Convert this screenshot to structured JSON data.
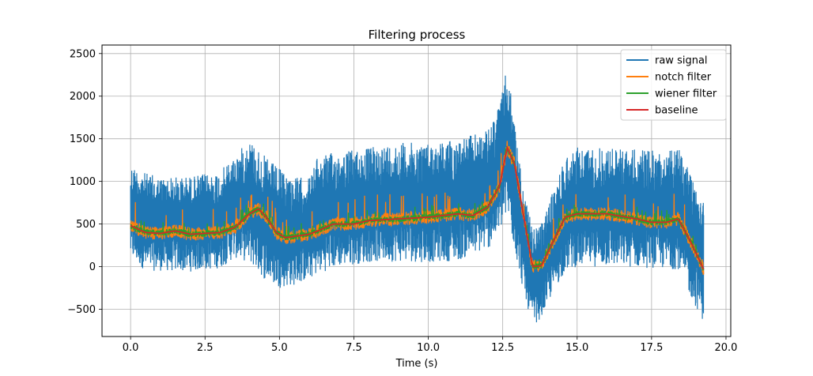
{
  "chart_data": {
    "type": "line",
    "title": "Filtering process",
    "xlabel": "Time (s)",
    "ylabel": "",
    "xlim": [
      -0.96,
      20.16
    ],
    "ylim": [
      -820,
      2600
    ],
    "xticks": [
      0.0,
      2.5,
      5.0,
      7.5,
      10.0,
      12.5,
      15.0,
      17.5,
      20.0
    ],
    "xtick_labels": [
      "0.0",
      "2.5",
      "5.0",
      "7.5",
      "10.0",
      "12.5",
      "15.0",
      "17.5",
      "20.0"
    ],
    "yticks": [
      -500,
      0,
      500,
      1000,
      1500,
      2000,
      2500
    ],
    "ytick_labels": [
      "−500",
      "0",
      "500",
      "1000",
      "1500",
      "2000",
      "2500"
    ],
    "grid": true,
    "legend_position": "top-right",
    "x_range": [
      0.0,
      19.25
    ],
    "series": [
      {
        "name": "raw signal",
        "color": "#1f77b4",
        "envelope": {
          "x": [
            0.0,
            0.5,
            1.0,
            2.0,
            3.0,
            3.5,
            4.0,
            4.5,
            5.0,
            5.5,
            6.0,
            6.3,
            7.0,
            8.0,
            9.0,
            10.0,
            11.0,
            12.0,
            12.4,
            12.65,
            12.9,
            13.2,
            13.5,
            13.8,
            14.2,
            14.6,
            15.0,
            16.0,
            17.0,
            18.0,
            18.4,
            18.8,
            19.25
          ],
          "upper": [
            1200,
            1100,
            1050,
            1060,
            1120,
            1300,
            1500,
            1300,
            1150,
            1050,
            1050,
            1300,
            1350,
            1400,
            1460,
            1450,
            1500,
            1600,
            1900,
            2350,
            1700,
            900,
            450,
            500,
            900,
            1300,
            1400,
            1400,
            1380,
            1350,
            1400,
            1150,
            850
          ],
          "lower": [
            100,
            -50,
            -50,
            -60,
            -20,
            100,
            50,
            -150,
            -250,
            -220,
            -150,
            -80,
            0,
            50,
            60,
            50,
            70,
            200,
            400,
            600,
            200,
            -300,
            -700,
            -600,
            -300,
            -50,
            0,
            0,
            -10,
            -30,
            -30,
            -350,
            -650
          ]
        }
      },
      {
        "name": "notch filter",
        "color": "#ff7f0e",
        "x": [
          0.0,
          0.5,
          1.0,
          1.5,
          2.0,
          2.5,
          3.0,
          3.5,
          4.0,
          4.3,
          4.6,
          4.9,
          5.2,
          5.6,
          6.0,
          6.3,
          6.8,
          7.5,
          8.0,
          9.0,
          10.0,
          11.0,
          11.5,
          12.0,
          12.4,
          12.65,
          12.9,
          13.2,
          13.5,
          13.8,
          14.2,
          14.6,
          15.0,
          16.0,
          17.0,
          17.5,
          18.0,
          18.4,
          18.8,
          19.25
        ],
        "values": [
          480,
          400,
          390,
          420,
          380,
          390,
          400,
          460,
          620,
          680,
          560,
          400,
          340,
          360,
          380,
          420,
          500,
          500,
          540,
          560,
          580,
          620,
          600,
          700,
          950,
          1400,
          1200,
          600,
          0,
          10,
          300,
          580,
          620,
          620,
          560,
          520,
          520,
          560,
          300,
          -30
        ],
        "band": 130
      },
      {
        "name": "wiener filter",
        "color": "#2ca02c",
        "x": [
          0.0,
          0.5,
          1.0,
          1.5,
          2.0,
          2.5,
          3.0,
          3.5,
          4.0,
          4.3,
          4.6,
          4.9,
          5.2,
          5.6,
          6.0,
          6.3,
          6.8,
          7.5,
          8.0,
          9.0,
          10.0,
          11.0,
          11.5,
          12.0,
          12.4,
          12.65,
          12.9,
          13.2,
          13.5,
          13.8,
          14.2,
          14.6,
          15.0,
          16.0,
          17.0,
          17.5,
          18.0,
          18.4,
          18.8,
          19.25
        ],
        "values": [
          480,
          400,
          390,
          420,
          380,
          390,
          400,
          460,
          620,
          680,
          560,
          400,
          340,
          360,
          380,
          420,
          500,
          500,
          540,
          560,
          580,
          620,
          600,
          700,
          950,
          1400,
          1200,
          600,
          0,
          10,
          300,
          580,
          620,
          620,
          560,
          520,
          520,
          560,
          300,
          -30
        ],
        "band": 60
      },
      {
        "name": "baseline",
        "color": "#d62728",
        "x": [
          0.0,
          0.5,
          1.0,
          1.5,
          2.0,
          2.5,
          3.0,
          3.5,
          4.0,
          4.3,
          4.6,
          4.9,
          5.2,
          5.6,
          6.0,
          6.3,
          6.8,
          7.5,
          8.0,
          9.0,
          10.0,
          11.0,
          11.5,
          12.0,
          12.4,
          12.65,
          12.9,
          13.2,
          13.5,
          13.8,
          14.2,
          14.6,
          15.0,
          16.0,
          17.0,
          17.5,
          18.0,
          18.4,
          18.8,
          19.25
        ],
        "values": [
          480,
          400,
          390,
          420,
          380,
          390,
          400,
          460,
          620,
          680,
          560,
          400,
          340,
          360,
          380,
          420,
          500,
          500,
          540,
          560,
          580,
          620,
          600,
          700,
          950,
          1400,
          1200,
          600,
          0,
          10,
          300,
          580,
          620,
          620,
          560,
          520,
          520,
          560,
          300,
          -30
        ]
      }
    ]
  }
}
